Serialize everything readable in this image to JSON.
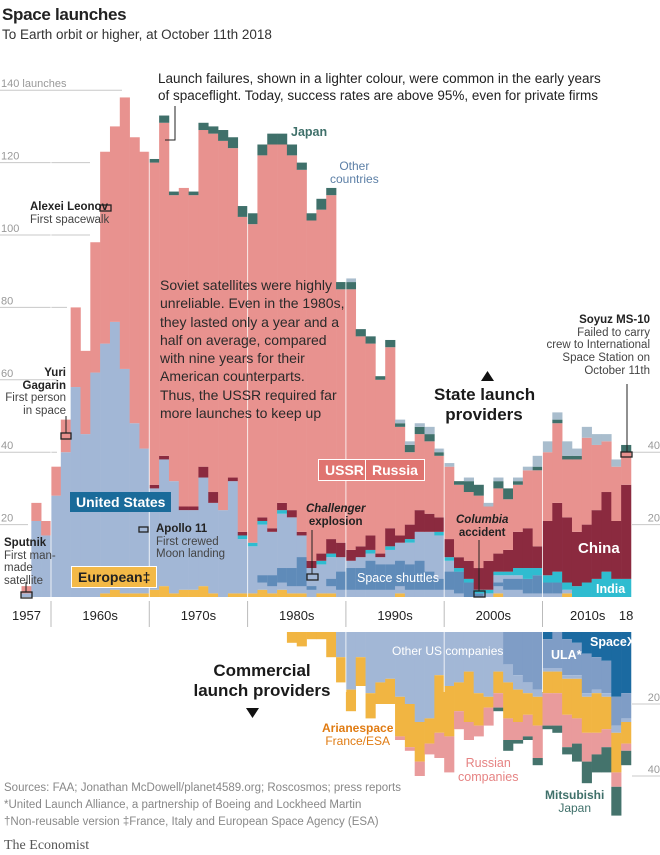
{
  "header": {
    "title": "Space launches",
    "subtitle": "To Earth orbit or higher, at October 11th 2018"
  },
  "colors": {
    "us": "#a2b7d6",
    "shuttle": "#5f8bb9",
    "europe": "#f3b947",
    "india": "#2fbcd0",
    "china": "#8b2a3f",
    "ussr_russia": "#e8928f",
    "japan": "#3f706a",
    "other": "#a9bdcd",
    "spacex": "#1b6aa1",
    "ula": "#7f9dc6",
    "other_us": "#a2b7d6",
    "arianespace": "#f1b542",
    "russian_companies": "#e99b9c",
    "mitsubishi": "#44736c",
    "grid": "#c8c8c8"
  },
  "annotations": {
    "failures_note": [
      "Launch failures, shown in a lighter colour, were common in the early years",
      "of spaceflight. Today, success rates are above 95%, even for private firms"
    ],
    "soviet_note": [
      "Soviet satellites were highly",
      "unreliable. Even in the 1980s,",
      "they lasted only a year and a",
      "half on average, compared",
      "with nine years for their",
      "American counterparts.",
      "Thus, the USSR required far",
      "more launches to keep up"
    ],
    "leonov": {
      "title": "Alexei Leonov",
      "text": "First spacewalk"
    },
    "gagarin": {
      "title": [
        "Yuri",
        "Gagarin"
      ],
      "text": [
        "First person",
        "in space"
      ]
    },
    "sputnik": {
      "title": "Sputnik",
      "text": [
        "First man-",
        "made",
        "satellite"
      ]
    },
    "apollo": {
      "title": "Apollo 11",
      "text": [
        "First crewed",
        "Moon landing"
      ]
    },
    "challenger": [
      "Challenger",
      "explosion"
    ],
    "columbia": [
      "Columbia",
      "accident"
    ],
    "soyuz": {
      "title": "Soyuz MS-10",
      "text": [
        "Failed to carry",
        "crew to International",
        "Space Station on",
        "October 11th"
      ]
    },
    "state_heading": [
      "State launch",
      "providers"
    ],
    "commercial_heading": [
      "Commercial",
      "launch providers"
    ]
  },
  "labels": {
    "united_states": "United States",
    "european": "European‡",
    "ussr": "USSR",
    "russia": "Russia",
    "china": "China",
    "india": "India",
    "japan": "Japan",
    "other_countries": [
      "Other",
      "countries"
    ],
    "space_shuttles": "Space shuttles",
    "other_us_companies": "Other US companies",
    "ula": "ULA*",
    "spacex": "SpaceX",
    "arianespace": [
      "Arianespace",
      "France/ESA"
    ],
    "russian_companies": [
      "Russian",
      "companies"
    ],
    "mitsubishi": [
      "Mitsubishi",
      "Japan"
    ]
  },
  "footer": {
    "sources": "Sources: FAA; Jonathan McDowell/planet4589.org; Roscosmos; press reports",
    "note_ula": "*United Launch Alliance, a partnership of Boeing  and Lockheed Martin",
    "note_dagger": "†Non-reusable version   ‡France, Italy and European Space Agency (ESA)",
    "brand": "The Economist"
  },
  "chart_data": [
    {
      "type": "bar",
      "stacked": true,
      "title": "State launch providers",
      "x_tick_labels": [
        "1957",
        "1960s",
        "1970s",
        "1980s",
        "1990s",
        "2000s",
        "2010s",
        "18"
      ],
      "y_ticks": [
        20,
        40,
        60,
        80,
        100,
        120,
        140
      ],
      "y_tick_labels": [
        "20",
        "40",
        "60",
        "80",
        "100",
        "120",
        "140 launches"
      ],
      "y_ticks_right": [
        20,
        40
      ],
      "ylim": [
        0,
        140
      ],
      "x_start": 1957,
      "x_end": 2018,
      "series": [
        {
          "name": "European‡",
          "key": "europe",
          "values": [
            0,
            0,
            0,
            0,
            0,
            0,
            0,
            0,
            1,
            2,
            1,
            1,
            1,
            2,
            3,
            1,
            2,
            2,
            3,
            1,
            0,
            1,
            1,
            1,
            2,
            1,
            2,
            1,
            1,
            0,
            1,
            1,
            0,
            0,
            0,
            0,
            0,
            0,
            1,
            0,
            0,
            0,
            0,
            0,
            0,
            0,
            0,
            0,
            1,
            0,
            0,
            0,
            0,
            0,
            0,
            1,
            0,
            0,
            0,
            0,
            0,
            0
          ]
        },
        {
          "name": "United States",
          "key": "us",
          "values": [
            1,
            21,
            17,
            28,
            40,
            58,
            45,
            62,
            69,
            74,
            62,
            47,
            40,
            28,
            35,
            31,
            22,
            22,
            30,
            25,
            24,
            31,
            15,
            13,
            18,
            17,
            21,
            21,
            16,
            8,
            8,
            10,
            11,
            10,
            11,
            12,
            11,
            13,
            14,
            15,
            18,
            18,
            17,
            10,
            7,
            4,
            1,
            1,
            5,
            6,
            6,
            5,
            6,
            4,
            4,
            1,
            0,
            0,
            0,
            0,
            0,
            0
          ],
          "of_which_space_shuttles": [
            0,
            0,
            0,
            0,
            0,
            0,
            0,
            0,
            0,
            0,
            0,
            0,
            0,
            0,
            0,
            0,
            0,
            0,
            0,
            0,
            0,
            0,
            0,
            0,
            2,
            3,
            4,
            5,
            8,
            1,
            0,
            2,
            5,
            6,
            6,
            8,
            7,
            7,
            7,
            7,
            8,
            5,
            3,
            5,
            6,
            4,
            1,
            0,
            1,
            3,
            3,
            4,
            5,
            3,
            3,
            0,
            0,
            0,
            0,
            0,
            0,
            0
          ]
        },
        {
          "name": "India",
          "key": "india",
          "values": [
            0,
            0,
            0,
            0,
            0,
            0,
            0,
            0,
            0,
            0,
            0,
            0,
            0,
            0,
            0,
            0,
            0,
            0,
            0,
            0,
            0,
            0,
            1,
            1,
            1,
            0,
            1,
            0,
            0,
            0,
            1,
            1,
            0,
            0,
            0,
            1,
            0,
            1,
            0,
            1,
            0,
            0,
            1,
            1,
            1,
            1,
            1,
            1,
            1,
            1,
            2,
            3,
            2,
            2,
            3,
            2,
            3,
            4,
            5,
            7,
            5,
            5
          ]
        },
        {
          "name": "China",
          "key": "china",
          "values": [
            0,
            0,
            0,
            0,
            0,
            0,
            0,
            0,
            0,
            0,
            0,
            0,
            0,
            1,
            1,
            0,
            1,
            1,
            3,
            3,
            0,
            1,
            1,
            0,
            1,
            1,
            2,
            2,
            1,
            2,
            2,
            4,
            4,
            3,
            3,
            4,
            1,
            5,
            2,
            4,
            6,
            5,
            4,
            5,
            3,
            5,
            6,
            8,
            5,
            6,
            10,
            11,
            6,
            15,
            19,
            18,
            15,
            16,
            19,
            22,
            16,
            26
          ]
        },
        {
          "name": "USSR / Russia",
          "key": "ussr_russia",
          "values": [
            2,
            5,
            4,
            8,
            9,
            22,
            23,
            36,
            53,
            54,
            75,
            79,
            82,
            89,
            92,
            79,
            88,
            86,
            93,
            99,
            102,
            91,
            87,
            88,
            100,
            106,
            99,
            98,
            100,
            94,
            95,
            95,
            70,
            72,
            58,
            53,
            48,
            50,
            30,
            20,
            21,
            20,
            17,
            20,
            20,
            19,
            20,
            15,
            18,
            14,
            13,
            16,
            21,
            19,
            22,
            16,
            20,
            24,
            18,
            14,
            15,
            9
          ]
        },
        {
          "name": "Japan",
          "key": "japan",
          "values": [
            0,
            0,
            0,
            0,
            0,
            0,
            0,
            0,
            0,
            0,
            0,
            0,
            0,
            1,
            2,
            1,
            0,
            1,
            2,
            2,
            3,
            3,
            3,
            3,
            3,
            3,
            3,
            3,
            2,
            2,
            3,
            2,
            2,
            2,
            2,
            2,
            1,
            2,
            1,
            2,
            2,
            2,
            1,
            0,
            1,
            3,
            3,
            0,
            2,
            3,
            1,
            0,
            1,
            0,
            1,
            1,
            1,
            0,
            0,
            0,
            0,
            2
          ]
        },
        {
          "name": "Other countries",
          "key": "other",
          "values": [
            0,
            0,
            0,
            0,
            0,
            0,
            0,
            0,
            0,
            0,
            0,
            0,
            0,
            0,
            0,
            0,
            0,
            0,
            0,
            0,
            0,
            0,
            0,
            0,
            0,
            0,
            0,
            0,
            0,
            0,
            0,
            0,
            0,
            1,
            0,
            0,
            0,
            0,
            1,
            1,
            1,
            2,
            1,
            1,
            0,
            1,
            0,
            1,
            1,
            0,
            1,
            1,
            3,
            3,
            2,
            4,
            2,
            3,
            3,
            2,
            2,
            0
          ]
        }
      ]
    },
    {
      "type": "bar",
      "stacked": true,
      "direction": "downward",
      "title": "Commercial launch providers",
      "y_ticks": [
        20,
        40
      ],
      "y_tick_labels": [
        "20",
        "40"
      ],
      "x_start": 1984,
      "x_end": 2018,
      "series": [
        {
          "name": "SpaceX",
          "key": "spacex",
          "values": [
            0,
            0,
            0,
            0,
            0,
            0,
            0,
            0,
            0,
            0,
            0,
            0,
            0,
            0,
            0,
            0,
            0,
            0,
            0,
            0,
            0,
            0,
            0,
            0,
            0,
            0,
            2,
            0,
            2,
            3,
            6,
            7,
            8,
            18,
            17
          ]
        },
        {
          "name": "ULA*",
          "key": "ula",
          "values": [
            0,
            0,
            0,
            0,
            0,
            0,
            0,
            0,
            0,
            0,
            0,
            0,
            0,
            0,
            0,
            0,
            0,
            0,
            0,
            0,
            0,
            0,
            9,
            12,
            14,
            16,
            8,
            10,
            10,
            9,
            11,
            9,
            9,
            8,
            7
          ]
        },
        {
          "name": "Other US companies",
          "key": "other_us",
          "values": [
            0,
            0,
            0,
            0,
            0,
            7,
            16,
            7,
            17,
            14,
            13,
            18,
            20,
            25,
            24,
            12,
            15,
            14,
            11,
            17,
            18,
            11,
            5,
            4,
            3,
            2,
            1,
            1,
            1,
            1,
            1,
            1,
            1,
            2,
            1
          ]
        },
        {
          "name": "Arianespace",
          "key": "arianespace",
          "values": [
            3,
            4,
            2,
            2,
            7,
            7,
            6,
            8,
            7,
            6,
            7,
            11,
            12,
            11,
            7,
            16,
            14,
            8,
            14,
            9,
            3,
            6,
            10,
            9,
            6,
            8,
            6,
            6,
            10,
            11,
            10,
            11,
            9,
            11,
            6
          ]
        },
        {
          "name": "Russian companies",
          "key": "russian_companies",
          "values": [
            0,
            0,
            0,
            0,
            0,
            0,
            0,
            0,
            0,
            0,
            0,
            1,
            1,
            4,
            3,
            7,
            10,
            5,
            5,
            3,
            5,
            4,
            6,
            5,
            6,
            9,
            9,
            9,
            9,
            7,
            8,
            6,
            5,
            4,
            2
          ]
        },
        {
          "name": "Mitsubishi",
          "key": "mitsubishi",
          "values": [
            0,
            0,
            0,
            0,
            0,
            0,
            0,
            0,
            0,
            0,
            0,
            0,
            0,
            0,
            0,
            0,
            0,
            0,
            0,
            0,
            0,
            1,
            3,
            1,
            1,
            2,
            1,
            2,
            2,
            5,
            6,
            5,
            7,
            8,
            4
          ]
        }
      ]
    }
  ]
}
